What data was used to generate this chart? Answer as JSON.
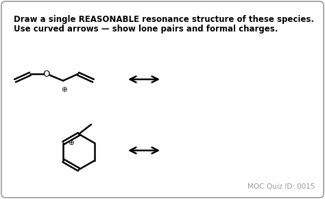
{
  "bg_color": "#ffffff",
  "border_color": "#999999",
  "text_color": "#000000",
  "moc_color": "#999999",
  "title_line1": "Draw a single REASONABLE resonance structure of these species.",
  "title_line2": "Use curved arrows — show lone pairs and formal charges.",
  "moc_text": "MOC Quiz ID: 0015",
  "title_fontsize": 8.5,
  "moc_fontsize": 7.5,
  "figw": 4.74,
  "figh": 2.91,
  "dpi": 100
}
